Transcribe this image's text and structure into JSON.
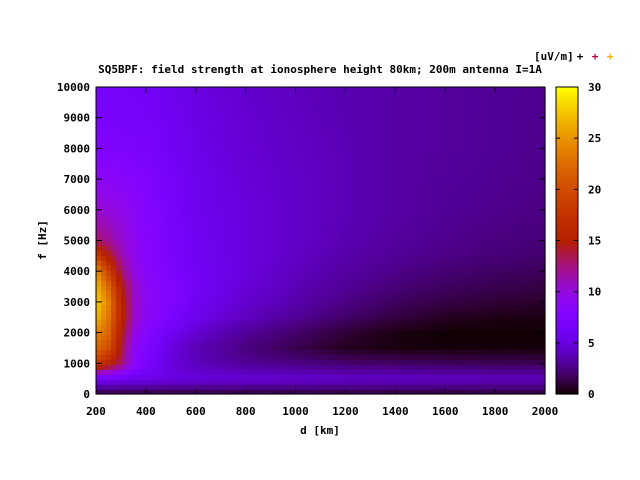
{
  "chart_data": {
    "type": "heatmap",
    "title": "SQ5BPF: field strength at ionosphere height 80km; 200m antenna I=1A",
    "xlabel": "d [km]",
    "ylabel": "f [Hz]",
    "colorbar_label": "[uV/m]",
    "legend_marks": [
      "+",
      "+",
      "+"
    ],
    "legend_mark_colors": [
      "#000000",
      "#c0003a",
      "#ffb000"
    ],
    "xlim": [
      200,
      2000
    ],
    "ylim": [
      0,
      10000
    ],
    "zlim": [
      0,
      30
    ],
    "x_ticks": [
      "200",
      "400",
      "600",
      "800",
      "1000",
      "1200",
      "1400",
      "1600",
      "1800",
      "2000"
    ],
    "y_ticks": [
      "0",
      "1000",
      "2000",
      "3000",
      "4000",
      "5000",
      "6000",
      "7000",
      "8000",
      "9000",
      "10000"
    ],
    "z_ticks": [
      "0",
      "5",
      "10",
      "15",
      "20",
      "25",
      "30"
    ],
    "colormap": "gnuplot (black-blue-purple-red-orange-yellow)",
    "x": [
      200,
      250,
      300,
      350,
      400,
      500,
      600,
      800,
      1000,
      1200,
      1400,
      1600,
      1800,
      2000
    ],
    "y": [
      0,
      500,
      1000,
      1500,
      2000,
      2500,
      3000,
      3500,
      4000,
      4500,
      5000,
      6000,
      7000,
      8000,
      9000,
      10000
    ],
    "z": [
      [
        1.0,
        1.0,
        1.0,
        1.0,
        1.0,
        1.0,
        1.0,
        1.0,
        1.0,
        1.0,
        1.0,
        1.0,
        1.0,
        1.0
      ],
      [
        6.0,
        6.0,
        5.8,
        5.6,
        5.5,
        5.2,
        5.0,
        4.8,
        4.6,
        4.4,
        4.3,
        4.2,
        4.1,
        4.0
      ],
      [
        18.0,
        16.0,
        13.0,
        9.0,
        7.0,
        5.0,
        4.0,
        3.0,
        2.6,
        2.2,
        2.0,
        1.8,
        1.7,
        1.6
      ],
      [
        22.0,
        20.0,
        14.0,
        9.0,
        7.5,
        5.0,
        3.8,
        2.5,
        1.5,
        0.6,
        0.3,
        0.2,
        0.2,
        0.2
      ],
      [
        24.0,
        22.0,
        15.0,
        10.0,
        8.0,
        6.0,
        4.5,
        3.0,
        2.0,
        1.0,
        0.3,
        0.1,
        0.1,
        0.1
      ],
      [
        27.0,
        23.0,
        16.0,
        11.0,
        9.0,
        7.0,
        5.5,
        4.0,
        3.0,
        2.0,
        1.2,
        0.6,
        0.4,
        0.3
      ],
      [
        28.0,
        24.0,
        16.0,
        11.0,
        9.0,
        7.5,
        6.0,
        4.5,
        3.5,
        2.6,
        1.8,
        1.3,
        1.0,
        0.8
      ],
      [
        27.0,
        22.0,
        15.0,
        11.0,
        9.0,
        7.5,
        6.2,
        4.8,
        3.8,
        3.0,
        2.3,
        1.8,
        1.5,
        1.3
      ],
      [
        25.0,
        19.0,
        13.0,
        10.0,
        8.5,
        7.2,
        6.2,
        5.0,
        4.0,
        3.3,
        2.7,
        2.2,
        1.9,
        1.7
      ],
      [
        19.0,
        15.0,
        11.5,
        9.5,
        8.3,
        7.0,
        6.0,
        5.0,
        4.2,
        3.5,
        3.0,
        2.6,
        2.3,
        2.1
      ],
      [
        13.0,
        12.0,
        10.5,
        9.2,
        8.2,
        7.0,
        6.0,
        5.0,
        4.3,
        3.7,
        3.2,
        2.8,
        2.5,
        2.3
      ],
      [
        10.5,
        10.0,
        9.5,
        9.0,
        8.0,
        6.8,
        5.8,
        5.0,
        4.3,
        3.8,
        3.4,
        3.0,
        2.8,
        2.6
      ],
      [
        9.0,
        8.8,
        8.5,
        8.0,
        7.5,
        6.5,
        5.7,
        4.8,
        4.3,
        3.8,
        3.4,
        3.1,
        2.9,
        2.7
      ],
      [
        7.5,
        7.5,
        7.4,
        7.2,
        7.0,
        6.2,
        5.5,
        4.7,
        4.2,
        3.8,
        3.4,
        3.2,
        3.0,
        2.8
      ],
      [
        6.8,
        6.8,
        6.8,
        6.7,
        6.5,
        6.0,
        5.3,
        4.6,
        4.1,
        3.7,
        3.4,
        3.2,
        3.0,
        2.8
      ],
      [
        6.5,
        6.5,
        6.5,
        6.4,
        6.2,
        5.8,
        5.2,
        4.5,
        4.0,
        3.7,
        3.4,
        3.2,
        3.0,
        2.9
      ]
    ]
  }
}
